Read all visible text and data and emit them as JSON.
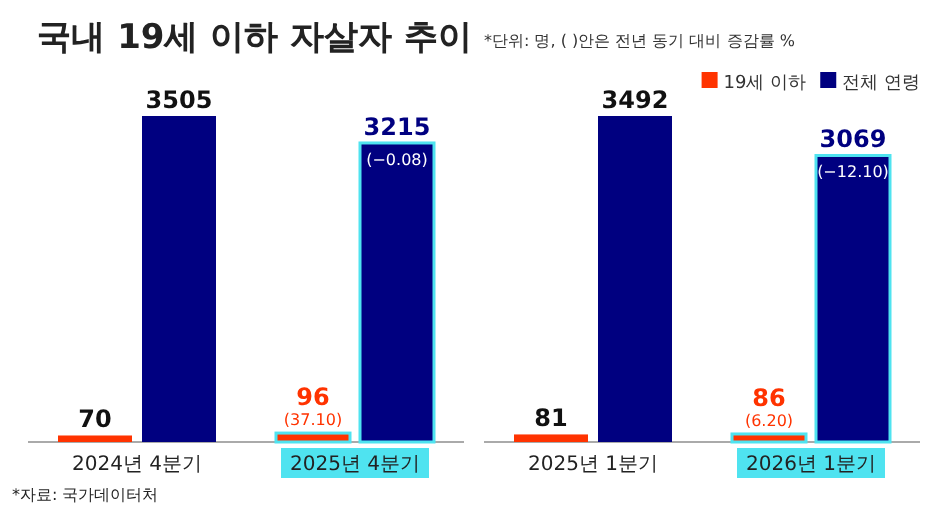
{
  "chart_data": [
    {
      "type": "bar",
      "title": "국내 19세 이하 자살자 추이",
      "categories": [
        "2024년 4분기",
        "2025년 4분기"
      ],
      "series": [
        {
          "color": "#ff3300",
          "values": [
            70,
            96
          ]
        },
        {
          "color": "#000080",
          "values": [
            3505,
            3215
          ]
        }
      ],
      "data_labels": true,
      "legend": false,
      "annotations": [
        {
          "text": "(37.10)",
          "x": "2025년 4분기",
          "y": 96
        },
        {
          "text": "(−0.08)",
          "x": "2025년 4분기",
          "y": 3215
        },
        "*자료: 국가데이터처"
      ]
    },
    {
      "type": "bar",
      "subtitle": "*단위: 명, ( )안은 전년 동기 대비 증감률 %",
      "categories": [
        "2025년 1분기",
        "2026년 1분기"
      ],
      "series": [
        {
          "name": "19세 이하",
          "color": "#ff3300",
          "values": [
            81,
            86
          ]
        },
        {
          "name": "전체 연령",
          "color": "#000080",
          "values": [
            3492,
            3069
          ]
        }
      ],
      "data_labels": true,
      "legend": "top right",
      "annotations": [
        {
          "text": "(6.20)",
          "x": "2026년 1분기",
          "y": 86
        },
        {
          "text": "(−12.10)",
          "x": "2026년 1분기",
          "y": 3069
        }
      ]
    }
  ]
}
